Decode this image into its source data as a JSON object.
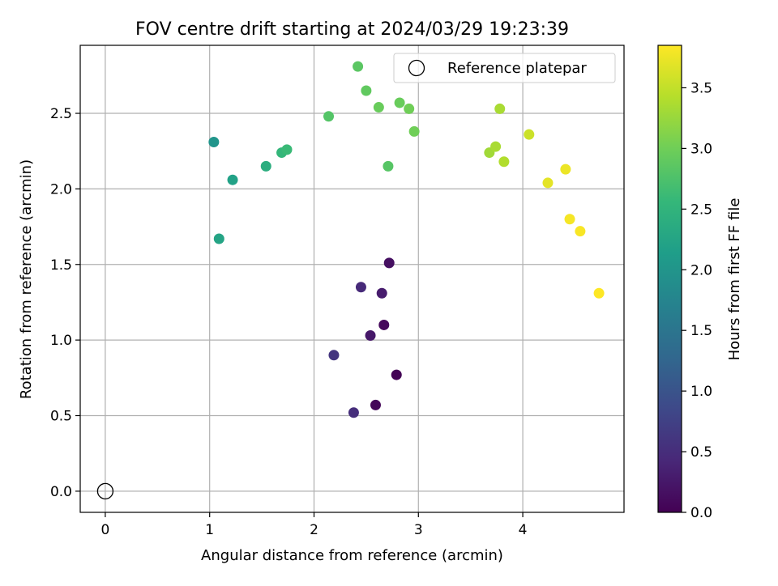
{
  "chart_data": {
    "type": "scatter",
    "title": "FOV centre drift starting at 2024/03/29 19:23:39",
    "xlabel": "Angular distance from reference (arcmin)",
    "ylabel": "Rotation from reference (arcmin)",
    "xlim": [
      -0.24,
      4.97
    ],
    "ylim": [
      -0.14,
      2.95
    ],
    "xticks": [
      0,
      1,
      2,
      3,
      4
    ],
    "xtick_labels": [
      "0",
      "1",
      "2",
      "3",
      "4"
    ],
    "yticks": [
      0.0,
      0.5,
      1.0,
      1.5,
      2.0,
      2.5
    ],
    "ytick_labels": [
      "0.0",
      "0.5",
      "1.0",
      "1.5",
      "2.0",
      "2.5"
    ],
    "grid": true,
    "legend": {
      "placement": "top-right",
      "entries": [
        {
          "label": "Reference platepar",
          "marker": "open-circle"
        }
      ]
    },
    "reference_point": {
      "x": 0,
      "y": 0
    },
    "colorbar": {
      "label": "Hours from first FF file",
      "colormap": "viridis",
      "range": [
        0.0,
        3.85
      ],
      "ticks": [
        0.0,
        0.5,
        1.0,
        1.5,
        2.0,
        2.5,
        3.0,
        3.5
      ],
      "tick_labels": [
        "0.0",
        "0.5",
        "1.0",
        "1.5",
        "2.0",
        "2.5",
        "3.0",
        "3.5"
      ]
    },
    "points": [
      {
        "x": 2.79,
        "y": 0.77,
        "hours": 0.02
      },
      {
        "x": 2.59,
        "y": 0.57,
        "hours": 0.05
      },
      {
        "x": 2.67,
        "y": 1.1,
        "hours": 0.08
      },
      {
        "x": 2.72,
        "y": 1.51,
        "hours": 0.15
      },
      {
        "x": 2.54,
        "y": 1.03,
        "hours": 0.25
      },
      {
        "x": 2.65,
        "y": 1.31,
        "hours": 0.3
      },
      {
        "x": 2.45,
        "y": 1.35,
        "hours": 0.45
      },
      {
        "x": 2.38,
        "y": 0.52,
        "hours": 0.5
      },
      {
        "x": 2.19,
        "y": 0.9,
        "hours": 0.6
      },
      {
        "x": 1.04,
        "y": 2.31,
        "hours": 2.0
      },
      {
        "x": 1.22,
        "y": 2.06,
        "hours": 2.2
      },
      {
        "x": 1.09,
        "y": 1.67,
        "hours": 2.25
      },
      {
        "x": 1.54,
        "y": 2.15,
        "hours": 2.4
      },
      {
        "x": 1.69,
        "y": 2.24,
        "hours": 2.55
      },
      {
        "x": 1.74,
        "y": 2.26,
        "hours": 2.6
      },
      {
        "x": 2.14,
        "y": 2.48,
        "hours": 2.8
      },
      {
        "x": 2.71,
        "y": 2.15,
        "hours": 2.82
      },
      {
        "x": 2.42,
        "y": 2.81,
        "hours": 2.85
      },
      {
        "x": 2.5,
        "y": 2.65,
        "hours": 2.9
      },
      {
        "x": 2.62,
        "y": 2.54,
        "hours": 2.95
      },
      {
        "x": 2.82,
        "y": 2.57,
        "hours": 2.95
      },
      {
        "x": 2.91,
        "y": 2.53,
        "hours": 3.0
      },
      {
        "x": 2.96,
        "y": 2.38,
        "hours": 3.0
      },
      {
        "x": 3.68,
        "y": 2.24,
        "hours": 3.3
      },
      {
        "x": 3.74,
        "y": 2.28,
        "hours": 3.35
      },
      {
        "x": 3.78,
        "y": 2.53,
        "hours": 3.35
      },
      {
        "x": 3.82,
        "y": 2.18,
        "hours": 3.4
      },
      {
        "x": 4.06,
        "y": 2.36,
        "hours": 3.55
      },
      {
        "x": 4.24,
        "y": 2.04,
        "hours": 3.7
      },
      {
        "x": 4.41,
        "y": 2.13,
        "hours": 3.75
      },
      {
        "x": 4.45,
        "y": 1.8,
        "hours": 3.8
      },
      {
        "x": 4.55,
        "y": 1.72,
        "hours": 3.82
      },
      {
        "x": 4.73,
        "y": 1.31,
        "hours": 3.85
      }
    ]
  }
}
